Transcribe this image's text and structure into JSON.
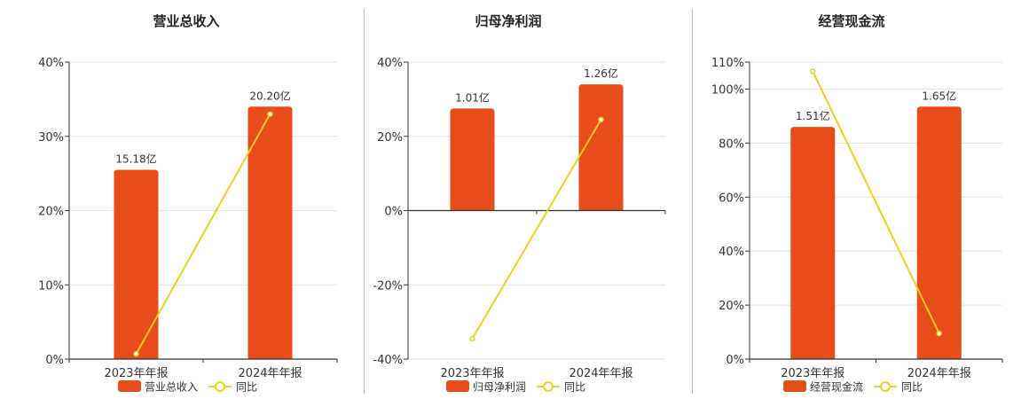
{
  "colors": {
    "bar": "#e84c1a",
    "line": "#f2cf1c",
    "axis": "#333333",
    "grid": "#e3e3e3"
  },
  "chart_data": [
    {
      "type": "bar",
      "title": "营业总收入",
      "categories": [
        "2023年年报",
        "2024年年报"
      ],
      "bar_labels": [
        "15.18亿",
        "20.20亿"
      ],
      "yticks": [
        "0%",
        "10%",
        "20%",
        "30%",
        "40%"
      ],
      "ylim": [
        0,
        40
      ],
      "series": [
        {
          "name": "营业总收入",
          "type": "bar",
          "values": [
            25.5,
            34.0
          ]
        },
        {
          "name": "同比",
          "type": "line",
          "values": [
            0.7,
            33.0
          ]
        }
      ],
      "legend": "bottom",
      "grid": true
    },
    {
      "type": "bar",
      "title": "归母净利润",
      "categories": [
        "2023年年报",
        "2024年年报"
      ],
      "bar_labels": [
        "1.01亿",
        "1.26亿"
      ],
      "yticks": [
        "-40%",
        "-20%",
        "0%",
        "20%",
        "40%"
      ],
      "ylim": [
        -40,
        40
      ],
      "series": [
        {
          "name": "归母净利润",
          "type": "bar",
          "values": [
            27.5,
            34.0
          ]
        },
        {
          "name": "同比",
          "type": "line",
          "values": [
            -34.5,
            24.5
          ]
        }
      ],
      "legend": "bottom",
      "grid": true
    },
    {
      "type": "bar",
      "title": "经营现金流",
      "categories": [
        "2023年年报",
        "2024年年报"
      ],
      "bar_labels": [
        "1.51亿",
        "1.65亿"
      ],
      "yticks": [
        "0%",
        "20%",
        "40%",
        "60%",
        "80%",
        "100%",
        "110%"
      ],
      "ylim": [
        0,
        110
      ],
      "series": [
        {
          "name": "经营现金流",
          "type": "bar",
          "values": [
            86.0,
            93.5
          ]
        },
        {
          "name": "同比",
          "type": "line",
          "values": [
            106.5,
            9.5
          ]
        }
      ],
      "legend": "bottom",
      "grid": true
    }
  ]
}
